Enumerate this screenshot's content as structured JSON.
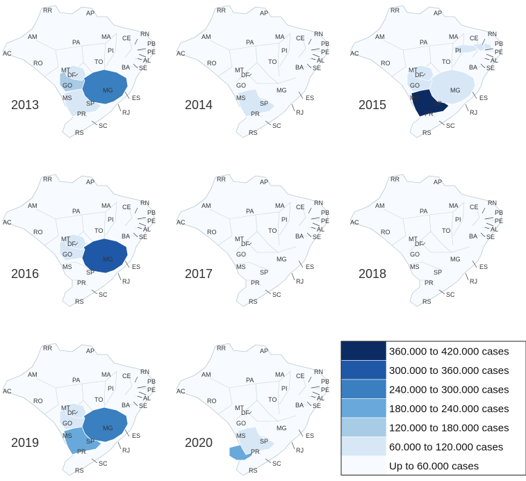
{
  "legend": {
    "bins": [
      {
        "label": "360.000 to 420.000 cases",
        "color": "#0d2b63"
      },
      {
        "label": "300.000 to 360.000 cases",
        "color": "#1f58a6"
      },
      {
        "label": "240.000 to 300.000 cases",
        "color": "#3a7fbf"
      },
      {
        "label": "180.000 to 240.000 cases",
        "color": "#68a8da"
      },
      {
        "label": "120.000 to 180.000 cases",
        "color": "#a8cbe6"
      },
      {
        "label": "60.000 to 120.000 cases",
        "color": "#d7e7f6"
      },
      {
        "label": "Up to 60.000 cases",
        "color": "#f7fbff"
      }
    ]
  },
  "state_labels": [
    "RR",
    "AP",
    "AM",
    "PA",
    "MA",
    "CE",
    "RN",
    "PB",
    "PE",
    "AL",
    "SE",
    "PI",
    "AC",
    "RO",
    "TO",
    "MT",
    "BA",
    "DF",
    "GO",
    "MG",
    "ES",
    "MS",
    "SP",
    "RJ",
    "PR",
    "SC",
    "RS"
  ],
  "maps": [
    {
      "year": "2013",
      "shading": {
        "MG": "#3a7fbf",
        "GO": "#a8cbe6",
        "DF": "#d7e7f6",
        "SP": "#d7e7f6"
      }
    },
    {
      "year": "2014",
      "shading": {
        "SP": "#d7e7f6"
      }
    },
    {
      "year": "2015",
      "shading": {
        "SP": "#0d2b63",
        "MG": "#d7e7f6",
        "GO": "#d7e7f6",
        "DF": "#d7e7f6",
        "PI": "#d7e7f6",
        "CE": "#d7e7f6",
        "RN": "#d7e7f6"
      }
    },
    {
      "year": "2016",
      "shading": {
        "MG": "#1f58a6",
        "GO": "#d7e7f6",
        "DF": "#d7e7f6"
      }
    },
    {
      "year": "2017",
      "shading": {}
    },
    {
      "year": "2018",
      "shading": {}
    },
    {
      "year": "2019",
      "shading": {
        "MG": "#3a7fbf",
        "SP": "#68a8da",
        "GO": "#d7e7f6",
        "DF": "#d7e7f6"
      }
    },
    {
      "year": "2020",
      "shading": {
        "PR": "#68a8da",
        "SP": "#d7e7f6"
      }
    }
  ]
}
